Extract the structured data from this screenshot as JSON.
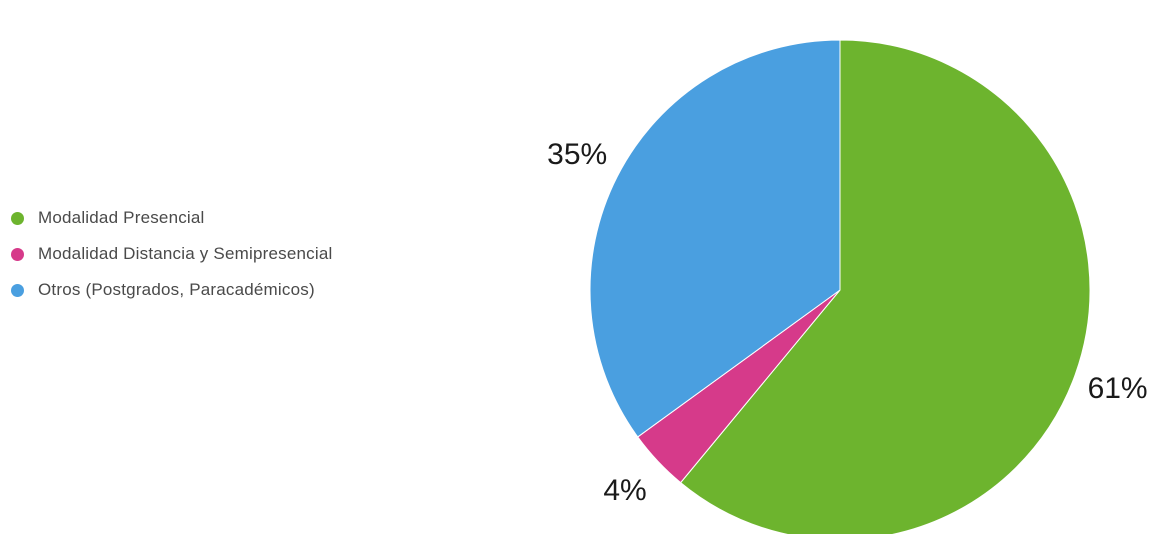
{
  "chart_data": {
    "type": "pie",
    "title": "",
    "legend_position": "left",
    "slices": [
      {
        "label": "Modalidad Presencial",
        "value": 61,
        "display": "61%",
        "color": "#6db42e"
      },
      {
        "label": "Modalidad Distancia y Semipresencial",
        "value": 4,
        "display": "4%",
        "color": "#d63a8a"
      },
      {
        "label": "Otros (Postgrados, Paracadémicos)",
        "value": 35,
        "display": "35%",
        "color": "#4a9fe0"
      }
    ]
  }
}
